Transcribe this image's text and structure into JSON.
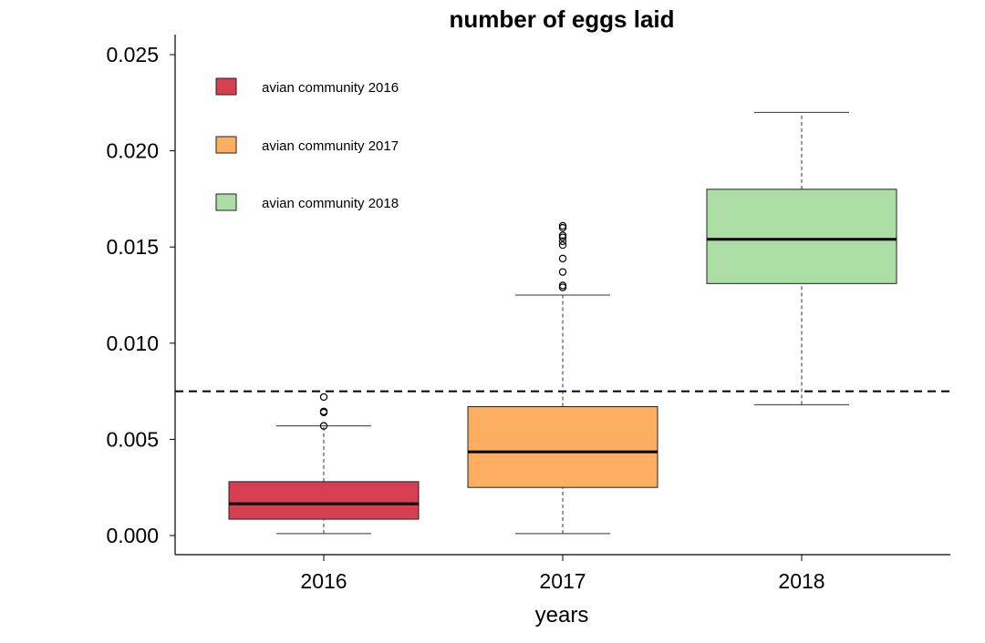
{
  "chart_data": {
    "type": "box",
    "title": "number of eggs laid",
    "xlabel": "years",
    "ylabel": "",
    "ylim": [
      -0.001,
      0.026
    ],
    "yticks": [
      0.0,
      0.005,
      0.01,
      0.015,
      0.02,
      0.025
    ],
    "ytick_labels": [
      "0.000",
      "0.005",
      "0.010",
      "0.015",
      "0.020",
      "0.025"
    ],
    "categories": [
      "2016",
      "2017",
      "2018"
    ],
    "reference_line": {
      "y": 0.0075,
      "style": "dashed"
    },
    "grid": false,
    "legend_position": "top-left",
    "series": [
      {
        "name": "avian community 2016",
        "color": "#d63f52",
        "whisker_low": 0.0001,
        "q1": 0.00085,
        "median": 0.00165,
        "q3": 0.0028,
        "whisker_high": 0.0057,
        "outliers": [
          0.0057,
          0.0064,
          0.00645,
          0.0072
        ]
      },
      {
        "name": "avian community 2017",
        "color": "#fdae61",
        "whisker_low": 0.0001,
        "q1": 0.0025,
        "median": 0.00435,
        "q3": 0.0067,
        "whisker_high": 0.0125,
        "outliers": [
          0.0129,
          0.013,
          0.0137,
          0.0144,
          0.0151,
          0.0153,
          0.0155,
          0.0156,
          0.016,
          0.0161
        ]
      },
      {
        "name": "avian community 2018",
        "color": "#abdda4",
        "whisker_low": 0.0068,
        "q1": 0.0131,
        "median": 0.0154,
        "q3": 0.018,
        "whisker_high": 0.022,
        "outliers": []
      }
    ]
  }
}
